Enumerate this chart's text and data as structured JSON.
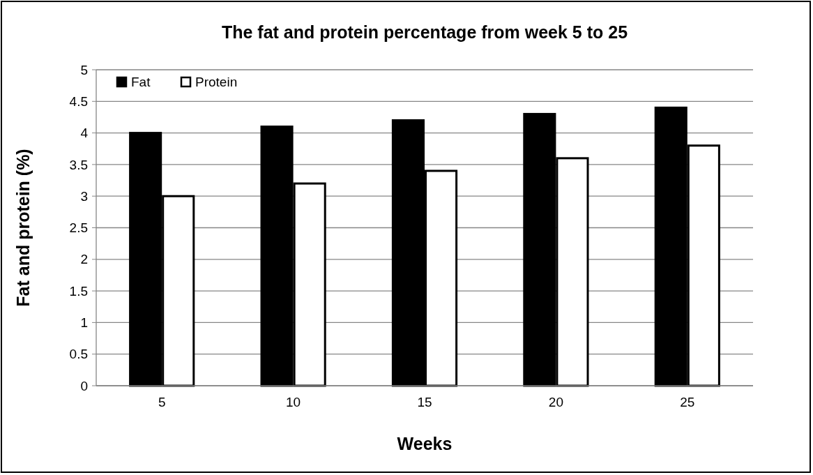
{
  "chart_data": {
    "type": "bar",
    "title": "The fat and protein percentage from week 5 to 25",
    "xlabel": "Weeks",
    "ylabel": "Fat and protein (%)",
    "categories": [
      "5",
      "10",
      "15",
      "20",
      "25"
    ],
    "series": [
      {
        "name": "Fat",
        "color": "#000000",
        "values": [
          4.0,
          4.1,
          4.2,
          4.3,
          4.4
        ]
      },
      {
        "name": "Protein",
        "color": "#ffffff",
        "values": [
          3.0,
          3.2,
          3.4,
          3.6,
          3.8
        ]
      }
    ],
    "ylim": [
      0,
      5
    ],
    "yticks": [
      0,
      0.5,
      1,
      1.5,
      2,
      2.5,
      3,
      3.5,
      4,
      4.5,
      5
    ],
    "grid": "y",
    "legend": "top left"
  }
}
